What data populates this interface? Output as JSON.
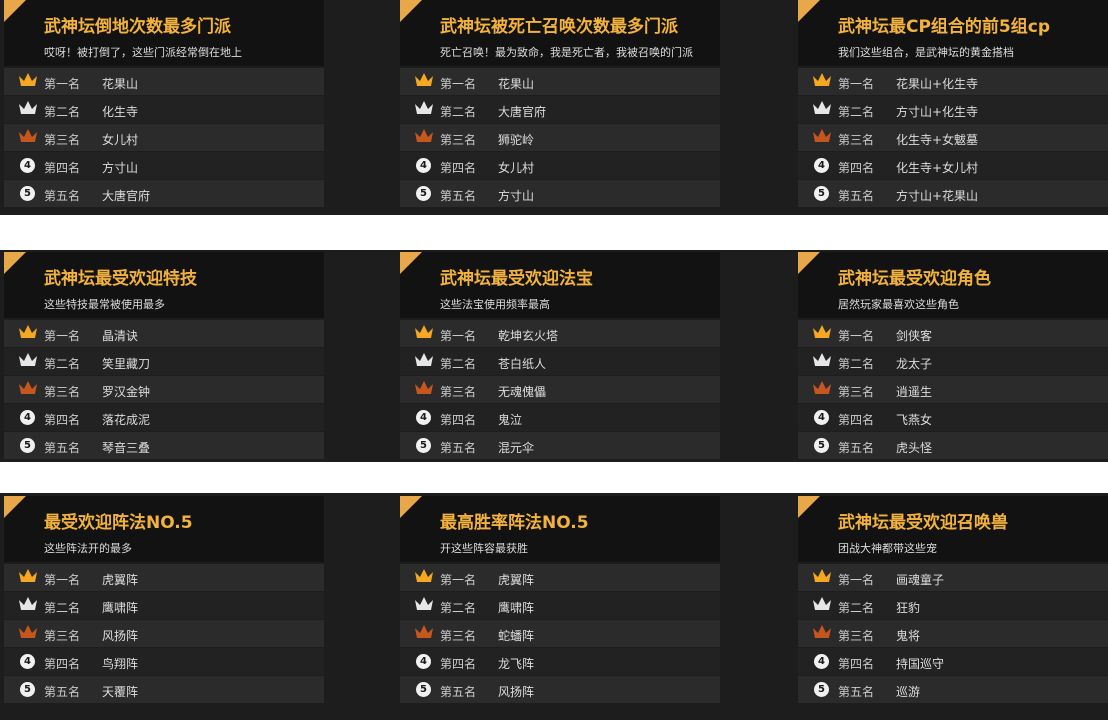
{
  "panels": [
    {
      "title": "武神坛倒地次数最多门派",
      "subtitle": "哎呀！被打倒了，这些门派经常倒在地上",
      "ranks": [
        {
          "rank": "第一名",
          "name": "花果山"
        },
        {
          "rank": "第二名",
          "name": "化生寺"
        },
        {
          "rank": "第三名",
          "name": "女儿村"
        },
        {
          "badge": "4",
          "rank": "第四名",
          "name": "方寸山"
        },
        {
          "badge": "5",
          "rank": "第五名",
          "name": "大唐官府"
        }
      ]
    },
    {
      "title": "武神坛被死亡召唤次数最多门派",
      "subtitle": "死亡召唤！最为致命，我是死亡者，我被召唤的门派",
      "ranks": [
        {
          "rank": "第一名",
          "name": "花果山"
        },
        {
          "rank": "第二名",
          "name": "大唐官府"
        },
        {
          "rank": "第三名",
          "name": "狮驼岭"
        },
        {
          "badge": "4",
          "rank": "第四名",
          "name": "女儿村"
        },
        {
          "badge": "5",
          "rank": "第五名",
          "name": "方寸山"
        }
      ]
    },
    {
      "title": "武神坛最CP组合的前5组cp",
      "subtitle": "我们这些组合，是武神坛的黄金搭档",
      "ranks": [
        {
          "rank": "第一名",
          "name": "花果山+化生寺"
        },
        {
          "rank": "第二名",
          "name": "方寸山+化生寺"
        },
        {
          "rank": "第三名",
          "name": "化生寺+女魃墓"
        },
        {
          "badge": "4",
          "rank": "第四名",
          "name": "化生寺+女儿村"
        },
        {
          "badge": "5",
          "rank": "第五名",
          "name": "方寸山+花果山"
        }
      ]
    },
    {
      "title": "武神坛最受欢迎特技",
      "subtitle": "这些特技最常被使用最多",
      "ranks": [
        {
          "rank": "第一名",
          "name": "晶清诀"
        },
        {
          "rank": "第二名",
          "name": "笑里藏刀"
        },
        {
          "rank": "第三名",
          "name": "罗汉金钟"
        },
        {
          "badge": "4",
          "rank": "第四名",
          "name": "落花成泥"
        },
        {
          "badge": "5",
          "rank": "第五名",
          "name": "琴音三叠"
        }
      ]
    },
    {
      "title": "武神坛最受欢迎法宝",
      "subtitle": "这些法宝使用频率最高",
      "ranks": [
        {
          "rank": "第一名",
          "name": "乾坤玄火塔"
        },
        {
          "rank": "第二名",
          "name": "苍白纸人"
        },
        {
          "rank": "第三名",
          "name": "无魂傀儡"
        },
        {
          "badge": "4",
          "rank": "第四名",
          "name": "鬼泣"
        },
        {
          "badge": "5",
          "rank": "第五名",
          "name": "混元伞"
        }
      ]
    },
    {
      "title": "武神坛最受欢迎角色",
      "subtitle": "居然玩家最喜欢这些角色",
      "ranks": [
        {
          "rank": "第一名",
          "name": "剑侠客"
        },
        {
          "rank": "第二名",
          "name": "龙太子"
        },
        {
          "rank": "第三名",
          "name": "逍遥生"
        },
        {
          "badge": "4",
          "rank": "第四名",
          "name": "飞燕女"
        },
        {
          "badge": "5",
          "rank": "第五名",
          "name": "虎头怪"
        }
      ]
    },
    {
      "title": "最受欢迎阵法NO.5",
      "subtitle": "这些阵法开的最多",
      "ranks": [
        {
          "rank": "第一名",
          "name": "虎翼阵"
        },
        {
          "rank": "第二名",
          "name": "鹰啸阵"
        },
        {
          "rank": "第三名",
          "name": "风扬阵"
        },
        {
          "badge": "4",
          "rank": "第四名",
          "name": "鸟翔阵"
        },
        {
          "badge": "5",
          "rank": "第五名",
          "name": "天覆阵"
        }
      ]
    },
    {
      "title": "最高胜率阵法NO.5",
      "subtitle": "开这些阵容最获胜",
      "ranks": [
        {
          "rank": "第一名",
          "name": "虎翼阵"
        },
        {
          "rank": "第二名",
          "name": "鹰啸阵"
        },
        {
          "rank": "第三名",
          "name": "蛇蟠阵"
        },
        {
          "badge": "4",
          "rank": "第四名",
          "name": "龙飞阵"
        },
        {
          "badge": "5",
          "rank": "第五名",
          "name": "风扬阵"
        }
      ]
    },
    {
      "title": "武神坛最受欢迎召唤兽",
      "subtitle": "团战大神都带这些宠",
      "ranks": [
        {
          "rank": "第一名",
          "name": "画魂童子"
        },
        {
          "rank": "第二名",
          "name": "狂豹"
        },
        {
          "rank": "第三名",
          "name": "鬼将"
        },
        {
          "badge": "4",
          "rank": "第四名",
          "name": "持国巡守"
        },
        {
          "badge": "5",
          "rank": "第五名",
          "name": "巡游"
        }
      ]
    }
  ]
}
